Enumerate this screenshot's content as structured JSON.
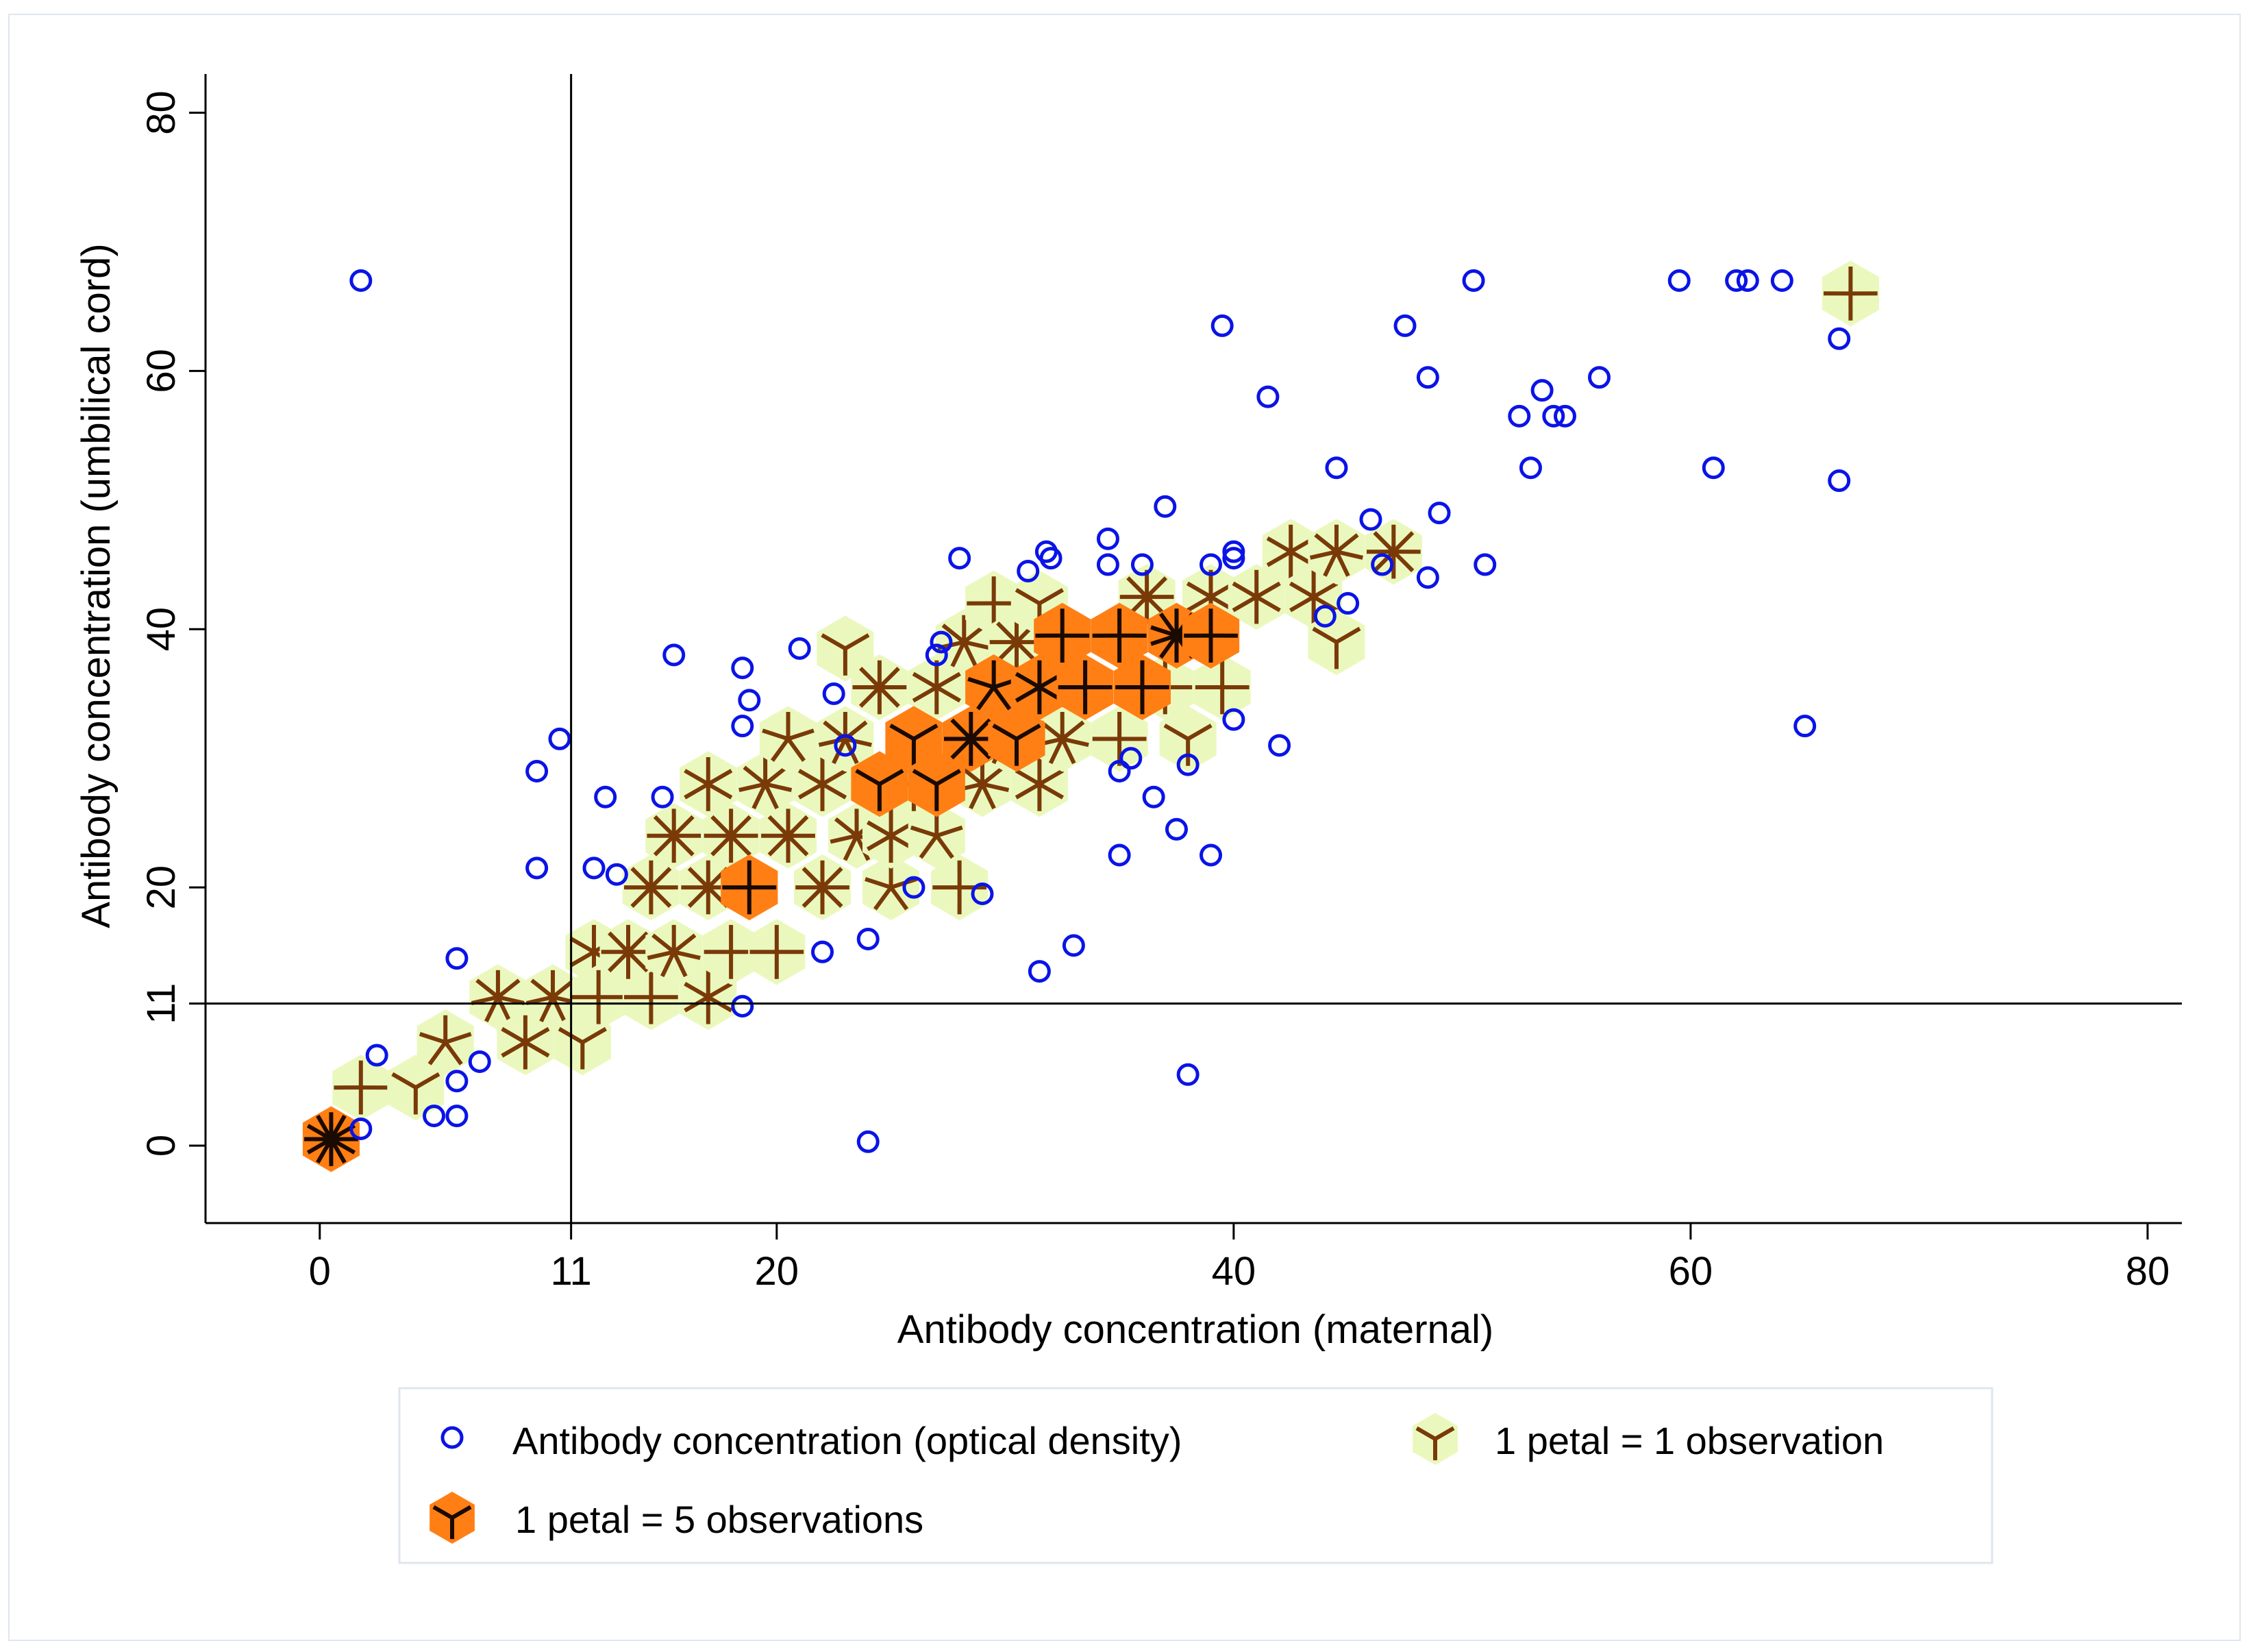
{
  "chart_data": {
    "type": "scatter",
    "title": "",
    "xlabel": "Antibody concentration (maternal)",
    "ylabel": "Antibody concentration (umbilical cord)",
    "xlim": [
      -5,
      81.5
    ],
    "ylim": [
      -6,
      83
    ],
    "xticks": [
      0,
      11,
      20,
      40,
      60,
      80
    ],
    "yticks": [
      0,
      11,
      20,
      40,
      60,
      80
    ],
    "reference_lines": {
      "x": 11,
      "y": 11
    },
    "colors": {
      "marker": "#0a14e6",
      "petal": "#7a3a08",
      "hex_light": "#eaf8bd",
      "hex_dark": "#ff7f14",
      "axis": "#000000"
    },
    "legend": [
      {
        "name": "Antibody concentration (optical density)",
        "symbol": "circle"
      },
      {
        "name": "1 petal = 1 observation",
        "symbol": "light-sunflower"
      },
      {
        "name": "1 petal = 5 observations",
        "symbol": "dark-sunflower"
      }
    ],
    "series": [
      {
        "name": "Antibody concentration (optical density)",
        "points": [
          [
            1.8,
            67
          ],
          [
            2.5,
            7
          ],
          [
            1.8,
            1.3
          ],
          [
            5,
            2.3
          ],
          [
            6,
            2.3
          ],
          [
            6,
            5
          ],
          [
            6,
            14.5
          ],
          [
            7,
            6.5
          ],
          [
            9.5,
            29
          ],
          [
            9.5,
            21.5
          ],
          [
            10.5,
            31.5
          ],
          [
            12.5,
            27
          ],
          [
            12,
            21.5
          ],
          [
            13,
            21
          ],
          [
            15,
            27
          ],
          [
            15.5,
            38
          ],
          [
            18.5,
            37
          ],
          [
            18.8,
            34.5
          ],
          [
            18.5,
            32.5
          ],
          [
            18.5,
            10.8
          ],
          [
            21,
            38.5
          ],
          [
            22.5,
            35
          ],
          [
            23,
            31
          ],
          [
            22,
            15
          ],
          [
            24,
            16
          ],
          [
            24,
            0.3
          ],
          [
            26,
            20
          ],
          [
            27,
            38
          ],
          [
            27.2,
            39
          ],
          [
            28,
            45.5
          ],
          [
            29,
            19.5
          ],
          [
            31,
            44.5
          ],
          [
            31.5,
            13.5
          ],
          [
            31.8,
            46
          ],
          [
            32,
            45.5
          ],
          [
            33,
            15.5
          ],
          [
            34.5,
            47
          ],
          [
            34.5,
            45
          ],
          [
            35,
            22.5
          ],
          [
            35,
            29
          ],
          [
            35.5,
            30
          ],
          [
            36,
            45
          ],
          [
            36.5,
            27
          ],
          [
            37,
            49.5
          ],
          [
            37.5,
            24.5
          ],
          [
            38,
            5.5
          ],
          [
            38,
            29.5
          ],
          [
            39,
            45
          ],
          [
            39,
            22.5
          ],
          [
            39.5,
            63.5
          ],
          [
            40,
            46
          ],
          [
            40,
            45.5
          ],
          [
            40,
            33
          ],
          [
            41.5,
            58
          ],
          [
            42,
            31
          ],
          [
            44,
            41
          ],
          [
            44.5,
            52.5
          ],
          [
            45,
            42
          ],
          [
            46,
            48.5
          ],
          [
            46.5,
            45
          ],
          [
            47.5,
            63.5
          ],
          [
            48.5,
            59.5
          ],
          [
            48.5,
            44
          ],
          [
            49,
            49
          ],
          [
            50.5,
            67
          ],
          [
            51,
            45
          ],
          [
            52.5,
            56.5
          ],
          [
            53,
            52.5
          ],
          [
            53.5,
            58.5
          ],
          [
            54,
            56.5
          ],
          [
            54.5,
            56.5
          ],
          [
            56,
            59.5
          ],
          [
            59.5,
            67
          ],
          [
            61,
            52.5
          ],
          [
            62,
            67
          ],
          [
            62.5,
            67
          ],
          [
            64,
            67
          ],
          [
            65,
            32.5
          ],
          [
            66.5,
            51.5
          ],
          [
            66.5,
            62.5
          ]
        ]
      },
      {
        "name": "1 petal = 1 observation",
        "sunflowers": [
          [
            1.8,
            4.5,
            4
          ],
          [
            4.2,
            4.5,
            3
          ],
          [
            5.5,
            8,
            5
          ],
          [
            7.8,
            11.5,
            7
          ],
          [
            9,
            8,
            6
          ],
          [
            10.2,
            11.5,
            7
          ],
          [
            11.5,
            8,
            3
          ],
          [
            12,
            15,
            6
          ],
          [
            12.2,
            11.5,
            4
          ],
          [
            14.5,
            11.5,
            4
          ],
          [
            13.5,
            15,
            8
          ],
          [
            14.5,
            20,
            8
          ],
          [
            15.5,
            15,
            7
          ],
          [
            15.5,
            24,
            8
          ],
          [
            17,
            11.5,
            6
          ],
          [
            17,
            20,
            8
          ],
          [
            17,
            28,
            6
          ],
          [
            18,
            15,
            4
          ],
          [
            18,
            24,
            8
          ],
          [
            20,
            15,
            4
          ],
          [
            19.5,
            28,
            7
          ],
          [
            20.5,
            24,
            8
          ],
          [
            20.5,
            31.5,
            5
          ],
          [
            22,
            20,
            8
          ],
          [
            22,
            28,
            6
          ],
          [
            23.5,
            24,
            7
          ],
          [
            23,
            31.5,
            7
          ],
          [
            23,
            38.5,
            3
          ],
          [
            24.5,
            35.5,
            8
          ],
          [
            25,
            20,
            5
          ],
          [
            25,
            24,
            6
          ],
          [
            26,
            28,
            4
          ],
          [
            27,
            35.5,
            6
          ],
          [
            27,
            24,
            5
          ],
          [
            28,
            20,
            4
          ],
          [
            28.2,
            39,
            7
          ],
          [
            29,
            28,
            7
          ],
          [
            29.5,
            42,
            4
          ],
          [
            30,
            31.5,
            7
          ],
          [
            30.5,
            39,
            8
          ],
          [
            31.5,
            28,
            6
          ],
          [
            31.5,
            42,
            3
          ],
          [
            32.5,
            31.5,
            7
          ],
          [
            35,
            31.5,
            4
          ],
          [
            36.2,
            42.5,
            8
          ],
          [
            37,
            35.5,
            4
          ],
          [
            38,
            31.5,
            3
          ],
          [
            39,
            42.5,
            6
          ],
          [
            39.5,
            35.5,
            4
          ],
          [
            41,
            42.5,
            6
          ],
          [
            42.5,
            46,
            6
          ],
          [
            43.5,
            42.5,
            6
          ],
          [
            44.5,
            46,
            7
          ],
          [
            44.5,
            39,
            3
          ],
          [
            47,
            46,
            8
          ],
          [
            67,
            66,
            4
          ]
        ]
      },
      {
        "name": "1 petal = 5 observations",
        "sunflowers": [
          [
            0.5,
            0.5,
            12
          ],
          [
            18.8,
            20,
            4
          ],
          [
            24.5,
            28,
            3
          ],
          [
            26,
            31.5,
            3
          ],
          [
            27,
            28,
            3
          ],
          [
            28.5,
            31.5,
            8
          ],
          [
            29.5,
            35.5,
            5
          ],
          [
            30.5,
            31.5,
            3
          ],
          [
            31.5,
            35.5,
            6
          ],
          [
            32.5,
            39.5,
            4
          ],
          [
            33.5,
            35.5,
            4
          ],
          [
            35,
            39.5,
            4
          ],
          [
            36,
            35.5,
            4
          ],
          [
            37.5,
            39.5,
            10
          ],
          [
            39,
            39.5,
            4
          ]
        ]
      }
    ]
  }
}
